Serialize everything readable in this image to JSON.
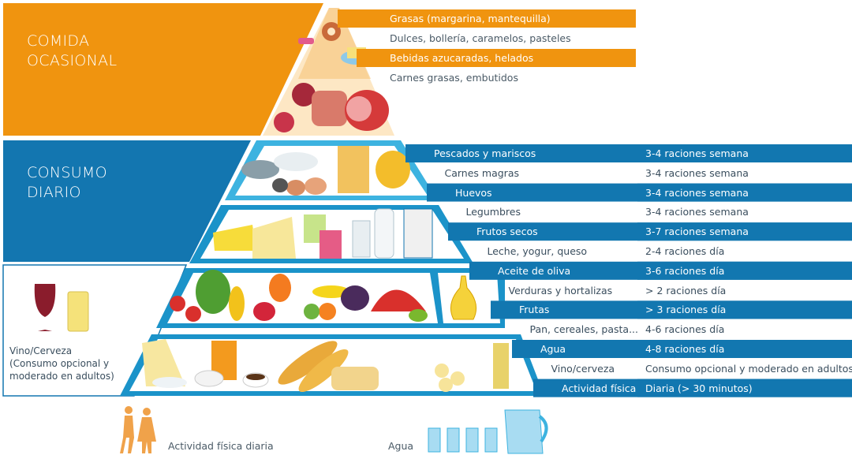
{
  "sections": {
    "occasional": {
      "title": "COMIDA\nOCASIONAL"
    },
    "daily": {
      "title": "CONSUMO\nDIARIO"
    },
    "optional": {
      "label": "Vino/Cerveza\n(Consumo opcional  y\nmoderado en adultos)"
    }
  },
  "occasional_rows": [
    {
      "label": "Grasas (margarina, mantequilla)",
      "style": "dark"
    },
    {
      "label": "Dulces, bollería, caramelos, pasteles",
      "style": "white"
    },
    {
      "label": "Bebidas azucaradas, helados",
      "style": "dark"
    },
    {
      "label": "Carnes grasas, embutidos",
      "style": "white"
    }
  ],
  "daily_rows": [
    {
      "label": "Pescados y mariscos",
      "value": "3-4 raciones semana",
      "style": "dark"
    },
    {
      "label": "Carnes magras",
      "value": "3-4 raciones semana",
      "style": "white"
    },
    {
      "label": "Huevos",
      "value": "3-4 raciones semana",
      "style": "dark"
    },
    {
      "label": "Legumbres",
      "value": "3-4 raciones semana",
      "style": "white"
    },
    {
      "label": "Frutos secos",
      "value": "3-7 raciones semana",
      "style": "dark"
    },
    {
      "label": "Leche, yogur, queso",
      "value": "2-4 raciones día",
      "style": "white"
    },
    {
      "label": "Aceite de oliva",
      "value": "3-6 raciones día",
      "style": "dark"
    },
    {
      "label": "Verduras y hortalizas",
      "value": "> 2 raciones día",
      "style": "white"
    },
    {
      "label": "Frutas",
      "value": "> 3 raciones día",
      "style": "dark"
    },
    {
      "label": "Pan, cereales, pasta...",
      "value": "4-6 raciones día",
      "style": "white"
    },
    {
      "label": "Agua",
      "value": "4-8 raciones día",
      "style": "dark"
    },
    {
      "label": "Vino/cerveza",
      "value": "Consumo opcional y moderado en adultos",
      "style": "white"
    },
    {
      "label": "Actividad física",
      "value": "Diaria (> 30 minutos)",
      "style": "dark"
    }
  ],
  "bottom": {
    "activity_label": "Actividad física diaria",
    "water_label": "Agua"
  },
  "colors": {
    "orange": "#f0940f",
    "orange_light": "#fde7c4",
    "blue_dark": "#1376b0",
    "blue_mid": "#1b93c9",
    "blue_light": "#3db3e0",
    "row_dark": "#1277b0",
    "row_white": "#ffffff"
  }
}
